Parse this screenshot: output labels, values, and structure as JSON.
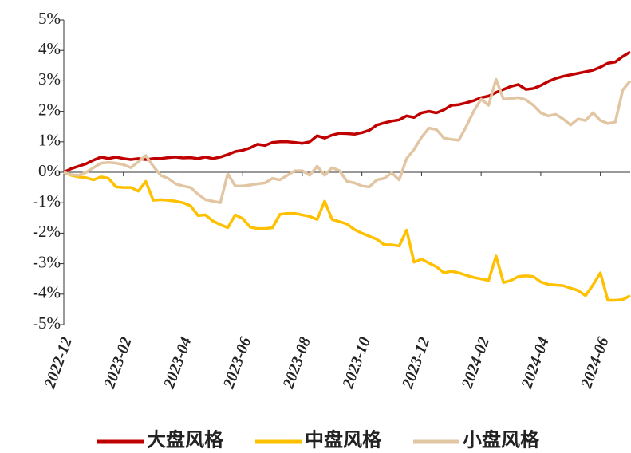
{
  "chart_data": {
    "type": "line",
    "categories": [
      "2022-12",
      null,
      null,
      null,
      null,
      null,
      null,
      null,
      "2023-02",
      null,
      null,
      null,
      null,
      null,
      null,
      null,
      "2023-04",
      null,
      null,
      null,
      null,
      null,
      null,
      null,
      "2023-06",
      null,
      null,
      null,
      null,
      null,
      null,
      null,
      "2023-08",
      null,
      null,
      null,
      null,
      null,
      null,
      null,
      "2023-10",
      null,
      null,
      null,
      null,
      null,
      null,
      null,
      "2023-12",
      null,
      null,
      null,
      null,
      null,
      null,
      null,
      "2024-02",
      null,
      null,
      null,
      null,
      null,
      null,
      null,
      "2024-04",
      null,
      null,
      null,
      null,
      null,
      null,
      null,
      "2024-06",
      null,
      null,
      null,
      null
    ],
    "series": [
      {
        "name": "大盘风格",
        "color": "#c00000",
        "values": [
          0,
          0.12,
          0.2,
          0.28,
          0.4,
          0.5,
          0.45,
          0.5,
          0.45,
          0.42,
          0.45,
          0.42,
          0.45,
          0.45,
          0.48,
          0.5,
          0.47,
          0.48,
          0.45,
          0.5,
          0.45,
          0.5,
          0.58,
          0.68,
          0.72,
          0.8,
          0.92,
          0.88,
          0.98,
          1.0,
          1.0,
          0.98,
          0.95,
          1.0,
          1.2,
          1.12,
          1.22,
          1.28,
          1.27,
          1.25,
          1.3,
          1.38,
          1.55,
          1.62,
          1.68,
          1.72,
          1.85,
          1.8,
          1.95,
          2.0,
          1.95,
          2.05,
          2.2,
          2.22,
          2.28,
          2.35,
          2.45,
          2.5,
          2.62,
          2.72,
          2.82,
          2.88,
          2.72,
          2.75,
          2.85,
          2.98,
          3.08,
          3.15,
          3.2,
          3.25,
          3.3,
          3.35,
          3.45,
          3.58,
          3.62,
          3.8,
          3.95
        ]
      },
      {
        "name": "中盘风格",
        "color": "#ffc000",
        "values": [
          0,
          -0.1,
          -0.15,
          -0.18,
          -0.25,
          -0.15,
          -0.2,
          -0.48,
          -0.5,
          -0.5,
          -0.62,
          -0.3,
          -0.92,
          -0.9,
          -0.92,
          -0.95,
          -1.0,
          -1.1,
          -1.42,
          -1.4,
          -1.6,
          -1.72,
          -1.82,
          -1.4,
          -1.52,
          -1.8,
          -1.85,
          -1.85,
          -1.82,
          -1.38,
          -1.35,
          -1.35,
          -1.4,
          -1.45,
          -1.55,
          -0.95,
          -1.55,
          -1.62,
          -1.7,
          -1.88,
          -2.0,
          -2.1,
          -2.2,
          -2.38,
          -2.38,
          -2.42,
          -1.9,
          -2.95,
          -2.85,
          -2.98,
          -3.1,
          -3.3,
          -3.25,
          -3.3,
          -3.38,
          -3.45,
          -3.5,
          -3.55,
          -2.75,
          -3.62,
          -3.55,
          -3.42,
          -3.4,
          -3.42,
          -3.6,
          -3.68,
          -3.7,
          -3.72,
          -3.8,
          -3.88,
          -4.05,
          -3.7,
          -3.3,
          -4.2,
          -4.2,
          -4.18,
          -4.05
        ]
      },
      {
        "name": "小盘风格",
        "color": "#e2c6a4",
        "values": [
          0,
          -0.08,
          -0.1,
          0.0,
          0.15,
          0.3,
          0.32,
          0.3,
          0.25,
          0.15,
          0.35,
          0.55,
          0.2,
          -0.1,
          -0.2,
          -0.38,
          -0.45,
          -0.5,
          -0.72,
          -0.9,
          -0.95,
          -1.0,
          -0.05,
          -0.45,
          -0.45,
          -0.42,
          -0.38,
          -0.35,
          -0.2,
          -0.25,
          -0.1,
          0.05,
          0.05,
          -0.1,
          0.2,
          -0.1,
          0.15,
          0.05,
          -0.3,
          -0.35,
          -0.45,
          -0.48,
          -0.25,
          -0.2,
          -0.02,
          -0.25,
          0.45,
          0.75,
          1.15,
          1.45,
          1.4,
          1.12,
          1.08,
          1.05,
          1.5,
          2.0,
          2.4,
          2.2,
          3.05,
          2.4,
          2.42,
          2.45,
          2.38,
          2.2,
          1.95,
          1.85,
          1.9,
          1.75,
          1.55,
          1.75,
          1.7,
          1.95,
          1.7,
          1.6,
          1.65,
          2.7,
          3.0
        ]
      }
    ],
    "ylim": [
      -5,
      5
    ],
    "yticks": [
      {
        "value": -5,
        "label": "-5%"
      },
      {
        "value": -4,
        "label": "-4%"
      },
      {
        "value": -3,
        "label": "-3%"
      },
      {
        "value": -2,
        "label": "-2%"
      },
      {
        "value": -1,
        "label": "-1%"
      },
      {
        "value": 0,
        "label": "0%"
      },
      {
        "value": 1,
        "label": "1%"
      },
      {
        "value": 2,
        "label": "2%"
      },
      {
        "value": 3,
        "label": "3%"
      },
      {
        "value": 4,
        "label": "4%"
      },
      {
        "value": 5,
        "label": "5%"
      }
    ],
    "grid": false,
    "legend": "bottom"
  }
}
